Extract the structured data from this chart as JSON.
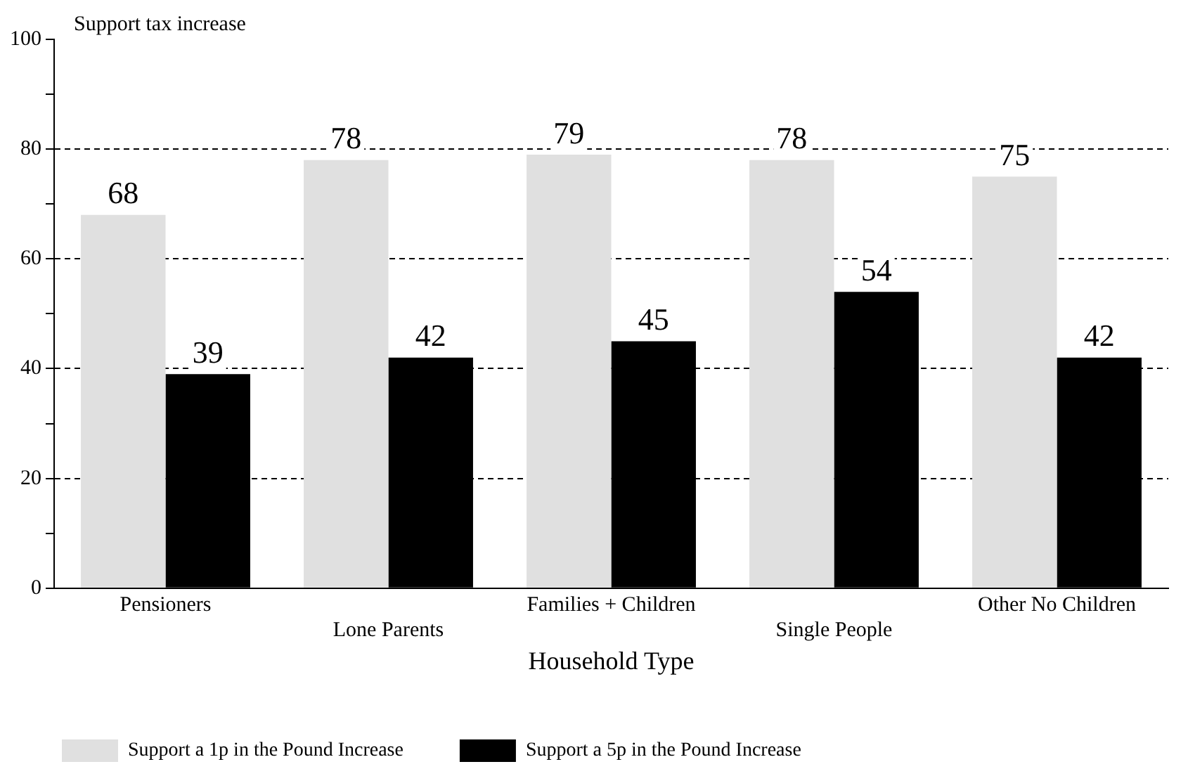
{
  "chart_data": {
    "type": "bar",
    "ylabel": "Support tax increase",
    "xlabel": "Household Type",
    "categories": [
      "Pensioners",
      "Lone Parents",
      "Families + Children",
      "Single People",
      "Other No Children"
    ],
    "series": [
      {
        "name": "Support a 1p in the Pound Increase",
        "color": "#e0e0e0",
        "values": [
          68,
          78,
          79,
          78,
          75
        ]
      },
      {
        "name": "Support a 5p in the Pound Increase",
        "color": "#000000",
        "values": [
          39,
          42,
          45,
          54,
          42
        ]
      }
    ],
    "ylim": [
      0,
      100
    ],
    "yticks": [
      0,
      {
        "value": 10,
        "label": null
      },
      20,
      {
        "value": 30,
        "label": null
      },
      40,
      {
        "value": 50,
        "label": null
      },
      60,
      {
        "value": 70,
        "label": null
      },
      80,
      {
        "value": 90,
        "label": null
      },
      100
    ],
    "grid": "y",
    "line_style": "dashed",
    "data_labels": true,
    "legend": "bottom"
  }
}
